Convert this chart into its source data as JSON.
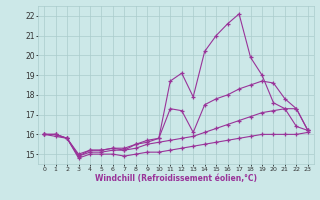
{
  "title": "",
  "xlabel": "Windchill (Refroidissement éolien,°C)",
  "background_color": "#cce8e8",
  "grid_color": "#aacccc",
  "line_color": "#993399",
  "x_values": [
    0,
    1,
    2,
    3,
    4,
    5,
    6,
    7,
    8,
    9,
    10,
    11,
    12,
    13,
    14,
    15,
    16,
    17,
    18,
    19,
    20,
    21,
    22,
    23
  ],
  "line1": [
    16.0,
    15.9,
    15.8,
    14.8,
    15.0,
    15.0,
    15.0,
    14.9,
    15.0,
    15.1,
    15.1,
    15.2,
    15.3,
    15.4,
    15.5,
    15.6,
    15.7,
    15.8,
    15.9,
    16.0,
    16.0,
    16.0,
    16.0,
    16.1
  ],
  "line2": [
    16.0,
    16.0,
    15.8,
    14.9,
    15.1,
    15.1,
    15.2,
    15.2,
    15.3,
    15.5,
    15.6,
    15.7,
    15.8,
    15.9,
    16.1,
    16.3,
    16.5,
    16.7,
    16.9,
    17.1,
    17.2,
    17.3,
    17.3,
    16.2
  ],
  "line3": [
    16.0,
    16.0,
    15.8,
    15.0,
    15.2,
    15.2,
    15.3,
    15.3,
    15.5,
    15.6,
    15.8,
    17.3,
    17.2,
    16.1,
    17.5,
    17.8,
    18.0,
    18.3,
    18.5,
    18.7,
    18.6,
    17.8,
    17.3,
    16.2
  ],
  "line4": [
    16.0,
    16.0,
    15.8,
    14.9,
    15.2,
    15.2,
    15.3,
    15.2,
    15.5,
    15.7,
    15.8,
    18.7,
    19.1,
    17.9,
    20.2,
    21.0,
    21.6,
    22.1,
    19.9,
    19.0,
    17.6,
    17.3,
    16.4,
    16.2
  ],
  "xlim": [
    -0.5,
    23.5
  ],
  "ylim": [
    14.5,
    22.5
  ],
  "yticks": [
    15,
    16,
    17,
    18,
    19,
    20,
    21,
    22
  ],
  "xticks": [
    0,
    1,
    2,
    3,
    4,
    5,
    6,
    7,
    8,
    9,
    10,
    11,
    12,
    13,
    14,
    15,
    16,
    17,
    18,
    19,
    20,
    21,
    22,
    23
  ]
}
